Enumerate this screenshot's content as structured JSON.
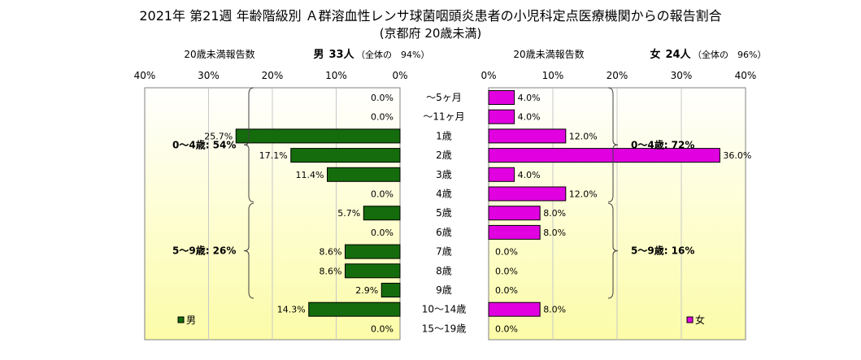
{
  "title": "2021年 第21週 年齢階級別 Ａ群溶血性レンサ球菌咽頭炎患者の小児科定点医療機関からの報告割合",
  "subtitle": "(京都府 20歳未満)",
  "colors": {
    "male": "#156c0c",
    "female": "#e000e0",
    "panel_top": "#ffffff",
    "panel_bottom": "#fcfca8",
    "grid": "#c8c8c8"
  },
  "chart_data": [
    {
      "type": "bar",
      "orientation": "horizontal-reversed",
      "panel_title": "20歳未満報告数",
      "sex_label": "男",
      "count_label": "33人",
      "share_label": "（全体の　94%）",
      "legend": "男",
      "xlim": [
        0,
        40
      ],
      "ticks": [
        "40%",
        "30%",
        "20%",
        "10%",
        "0%"
      ],
      "categories": [
        "～5ヶ月",
        "～11ヶ月",
        "1歳",
        "2歳",
        "3歳",
        "4歳",
        "5歳",
        "6歳",
        "7歳",
        "8歳",
        "9歳",
        "10～14歳",
        "15～19歳"
      ],
      "values": [
        0.0,
        0.0,
        25.7,
        17.1,
        11.4,
        0.0,
        5.7,
        0.0,
        8.6,
        8.6,
        2.9,
        14.3,
        0.0
      ],
      "labels": [
        "0.0%",
        "0.0%",
        "25.7%",
        "17.1%",
        "11.4%",
        "0.0%",
        "5.7%",
        "0.0%",
        "8.6%",
        "8.6%",
        "2.9%",
        "14.3%",
        "0.0%"
      ],
      "groups": [
        {
          "label": "0～4歳: 54%",
          "from": 0,
          "to": 5
        },
        {
          "label": "5～9歳: 26%",
          "from": 6,
          "to": 10
        }
      ]
    },
    {
      "type": "bar",
      "orientation": "horizontal",
      "panel_title": "20歳未満報告数",
      "sex_label": "女",
      "count_label": "24人",
      "share_label": "（全体の　96%）",
      "legend": "女",
      "xlim": [
        0,
        40
      ],
      "ticks": [
        "0%",
        "10%",
        "20%",
        "30%",
        "40%"
      ],
      "categories": [
        "～5ヶ月",
        "～11ヶ月",
        "1歳",
        "2歳",
        "3歳",
        "4歳",
        "5歳",
        "6歳",
        "7歳",
        "8歳",
        "9歳",
        "10～14歳",
        "15～19歳"
      ],
      "values": [
        4.0,
        4.0,
        12.0,
        36.0,
        4.0,
        12.0,
        8.0,
        8.0,
        0.0,
        0.0,
        0.0,
        8.0,
        0.0
      ],
      "labels": [
        "4.0%",
        "4.0%",
        "12.0%",
        "36.0%",
        "4.0%",
        "12.0%",
        "8.0%",
        "8.0%",
        "0.0%",
        "0.0%",
        "0.0%",
        "8.0%",
        "0.0%"
      ],
      "groups": [
        {
          "label": "0～4歳: 72%",
          "from": 0,
          "to": 5
        },
        {
          "label": "5～9歳: 16%",
          "from": 6,
          "to": 10
        }
      ]
    }
  ]
}
